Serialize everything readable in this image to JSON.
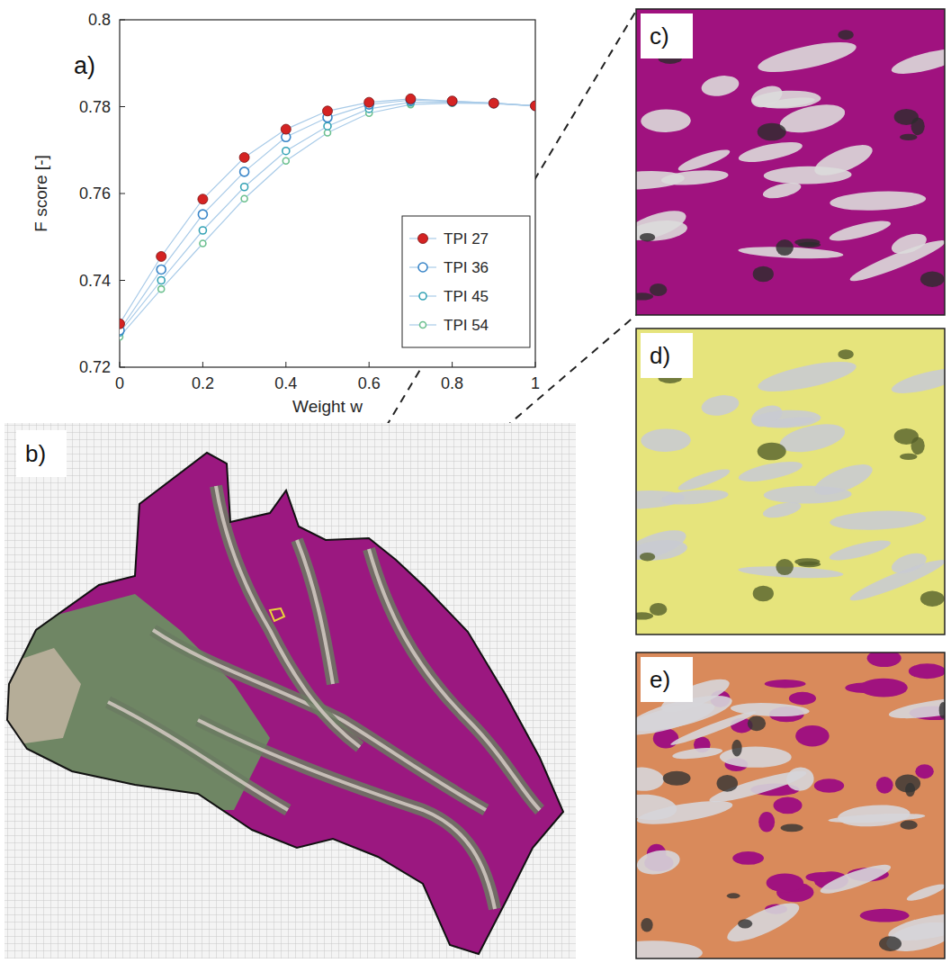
{
  "chart_data": {
    "type": "line",
    "annotations": [
      "a)"
    ],
    "x_label": "Weight w",
    "y_label": "F score [-]",
    "x": [
      0,
      0.1,
      0.2,
      0.3,
      0.4,
      0.5,
      0.6,
      0.7,
      0.8,
      0.9,
      1
    ],
    "xlim": [
      0,
      1
    ],
    "xticks": [
      0,
      0.2,
      0.4,
      0.6,
      0.8,
      1
    ],
    "ylim": [
      0.72,
      0.8
    ],
    "yticks": [
      0.72,
      0.74,
      0.76,
      0.78,
      0.8
    ],
    "grid": false,
    "legend": "lower right",
    "series": [
      {
        "name": "TPI 27",
        "color": "#d42323",
        "marker": "filled circle",
        "line_style": "solid",
        "values": [
          0.73,
          0.7455,
          0.7587,
          0.7683,
          0.7748,
          0.779,
          0.781,
          0.7818,
          0.7813,
          0.7808,
          0.7802
        ]
      },
      {
        "name": "TPI 36",
        "color": "#3a86c8",
        "marker": "open circle",
        "line_style": "solid",
        "values": [
          0.7285,
          0.7425,
          0.7552,
          0.765,
          0.773,
          0.7775,
          0.7805,
          0.7815,
          0.7812,
          0.7808,
          0.7802
        ]
      },
      {
        "name": "TPI 45",
        "color": "#35a3b5",
        "marker": "open circle",
        "line_style": "solid",
        "values": [
          0.728,
          0.74,
          0.7515,
          0.7615,
          0.7698,
          0.7755,
          0.7795,
          0.781,
          0.781,
          0.7808,
          0.7802
        ]
      },
      {
        "name": "TPI 54",
        "color": "#6cc08f",
        "marker": "open circle",
        "line_style": "solid",
        "values": [
          0.727,
          0.738,
          0.7485,
          0.7588,
          0.7675,
          0.774,
          0.7785,
          0.7805,
          0.7808,
          0.7807,
          0.7802
        ]
      }
    ]
  },
  "panels": [
    {
      "label": "b)"
    },
    {
      "label": "c)"
    },
    {
      "label": "d)"
    },
    {
      "label": "e)"
    }
  ]
}
